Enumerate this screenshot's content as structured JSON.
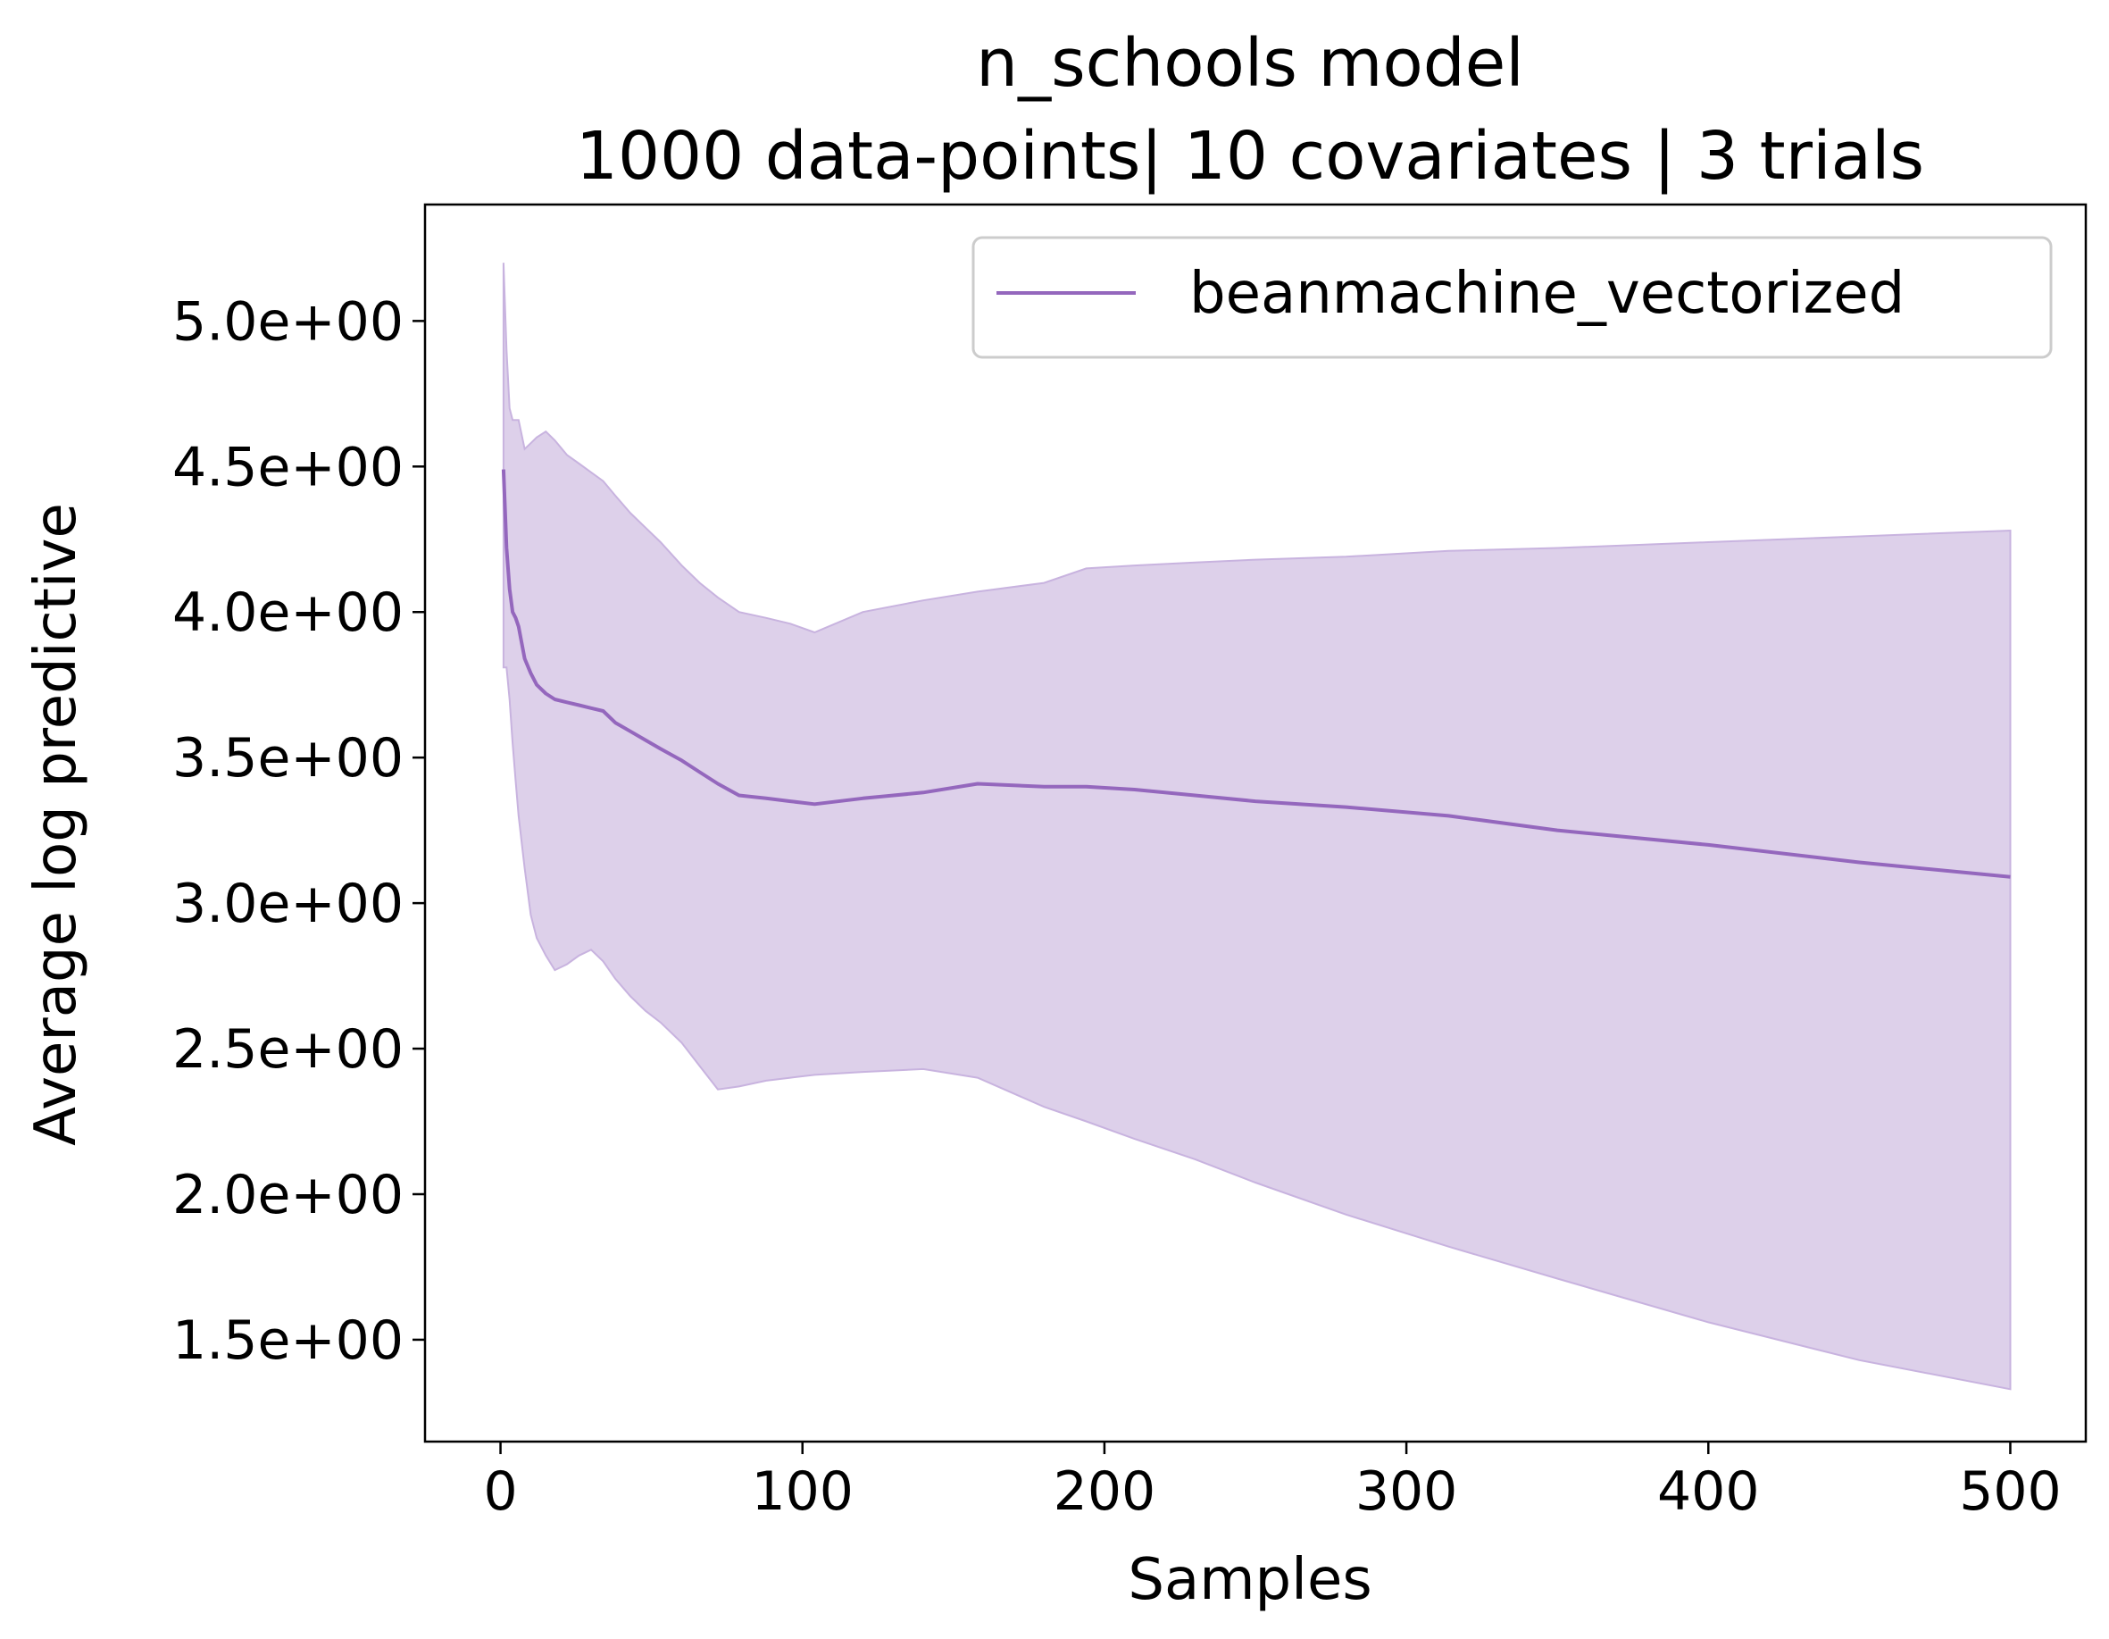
{
  "chart_data": {
    "type": "line",
    "title": "n_schools model",
    "subtitle": "1000 data-points| 10 covariates | 3 trials",
    "xlabel": "Samples",
    "ylabel": "Average log predictive",
    "xlim": [
      -25,
      525
    ],
    "ylim": [
      1.15,
      5.4
    ],
    "xticks": [
      0,
      100,
      200,
      300,
      400,
      500
    ],
    "xtick_labels": [
      "0",
      "100",
      "200",
      "300",
      "400",
      "500"
    ],
    "yticks": [
      1.5,
      2.0,
      2.5,
      3.0,
      3.5,
      4.0,
      4.5,
      5.0
    ],
    "ytick_labels": [
      "1.5e+00",
      "2.0e+00",
      "2.5e+00",
      "3.0e+00",
      "3.5e+00",
      "4.0e+00",
      "4.5e+00",
      "5.0e+00"
    ],
    "grid": false,
    "legend_position": "top-right",
    "series": [
      {
        "name": "beanmachine_vectorized",
        "color": "#9467bd",
        "band_color": "#ddd0ea",
        "x": [
          1,
          2,
          3,
          4,
          5,
          6,
          8,
          10,
          12,
          15,
          18,
          22,
          26,
          30,
          34,
          38,
          43,
          48,
          53,
          60,
          66,
          72,
          79,
          88,
          96,
          104,
          120,
          140,
          158,
          180,
          194,
          210,
          230,
          250,
          280,
          314,
          350,
          400,
          450,
          500
        ],
        "y": [
          4.49,
          4.22,
          4.08,
          4.0,
          3.98,
          3.95,
          3.84,
          3.79,
          3.75,
          3.72,
          3.7,
          3.69,
          3.68,
          3.67,
          3.66,
          3.62,
          3.59,
          3.56,
          3.53,
          3.49,
          3.45,
          3.41,
          3.37,
          3.36,
          3.35,
          3.34,
          3.36,
          3.38,
          3.41,
          3.4,
          3.4,
          3.39,
          3.37,
          3.35,
          3.33,
          3.3,
          3.25,
          3.2,
          3.14,
          3.09
        ],
        "upper": [
          5.2,
          4.9,
          4.7,
          4.66,
          4.66,
          4.66,
          4.56,
          4.58,
          4.6,
          4.62,
          4.59,
          4.54,
          4.51,
          4.48,
          4.45,
          4.4,
          4.34,
          4.29,
          4.24,
          4.16,
          4.1,
          4.05,
          4.0,
          3.98,
          3.96,
          3.93,
          4.0,
          4.04,
          4.07,
          4.1,
          4.15,
          4.16,
          4.17,
          4.18,
          4.19,
          4.21,
          4.22,
          4.24,
          4.26,
          4.28
        ],
        "lower": [
          3.81,
          3.81,
          3.7,
          3.55,
          3.42,
          3.3,
          3.12,
          2.96,
          2.88,
          2.82,
          2.77,
          2.79,
          2.82,
          2.84,
          2.8,
          2.74,
          2.68,
          2.63,
          2.59,
          2.52,
          2.44,
          2.36,
          2.37,
          2.39,
          2.4,
          2.41,
          2.42,
          2.43,
          2.4,
          2.3,
          2.25,
          2.19,
          2.12,
          2.04,
          1.93,
          1.82,
          1.71,
          1.56,
          1.43,
          1.33
        ]
      }
    ]
  }
}
